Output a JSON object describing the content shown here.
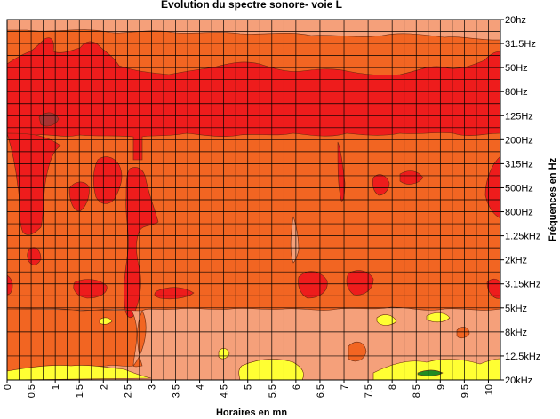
{
  "chart_data": {
    "type": "heatmap",
    "title": "Evolution du spectre sonore- voie L",
    "xlabel": "Horaires en mn",
    "ylabel": "Fréquences en Hz",
    "x_ticks": [
      "0",
      "0.5",
      "1",
      "1.5",
      "2",
      "2.5",
      "3",
      "3.5",
      "4",
      "4.5",
      "5",
      "5.5",
      "6",
      "6.5",
      "7",
      "7.5",
      "8",
      "8.5",
      "9",
      "9.5",
      "10"
    ],
    "xlim": [
      0,
      10.25
    ],
    "y_ticks": [
      "20hz",
      "31.5Hz",
      "50Hz",
      "80Hz",
      "125Hz",
      "200Hz",
      "315Hz",
      "500Hz",
      "800Hz",
      "1.25kHz",
      "2kHz",
      "3.15kHz",
      "5kHz",
      "8kHz",
      "12.5kHz",
      "20kHz"
    ],
    "grid": true,
    "colors": {
      "level_1": "#228b22",
      "level_2": "#ffff33",
      "level_3": "#f5a07a",
      "level_4": "#f26522",
      "level_5": "#ee1c1c",
      "level_6": "#a83232",
      "grid_line": "#000000"
    }
  }
}
